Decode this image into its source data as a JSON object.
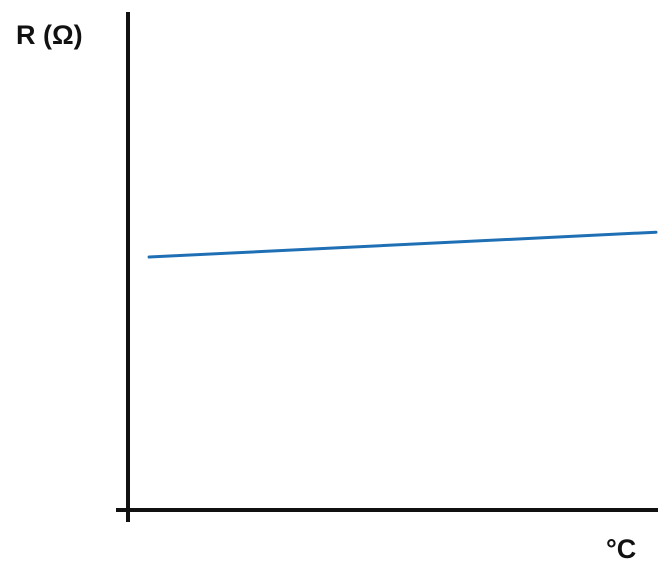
{
  "chart_data": {
    "type": "line",
    "title": "",
    "xlabel": "°C",
    "ylabel": "R (Ω)",
    "grid": false,
    "legend": "none",
    "xlim": [
      0,
      100
    ],
    "ylim": [
      0,
      100
    ],
    "series": [
      {
        "color": "#1f6fb5",
        "x": [
          4,
          100
        ],
        "y": [
          51,
          56
        ]
      }
    ]
  }
}
